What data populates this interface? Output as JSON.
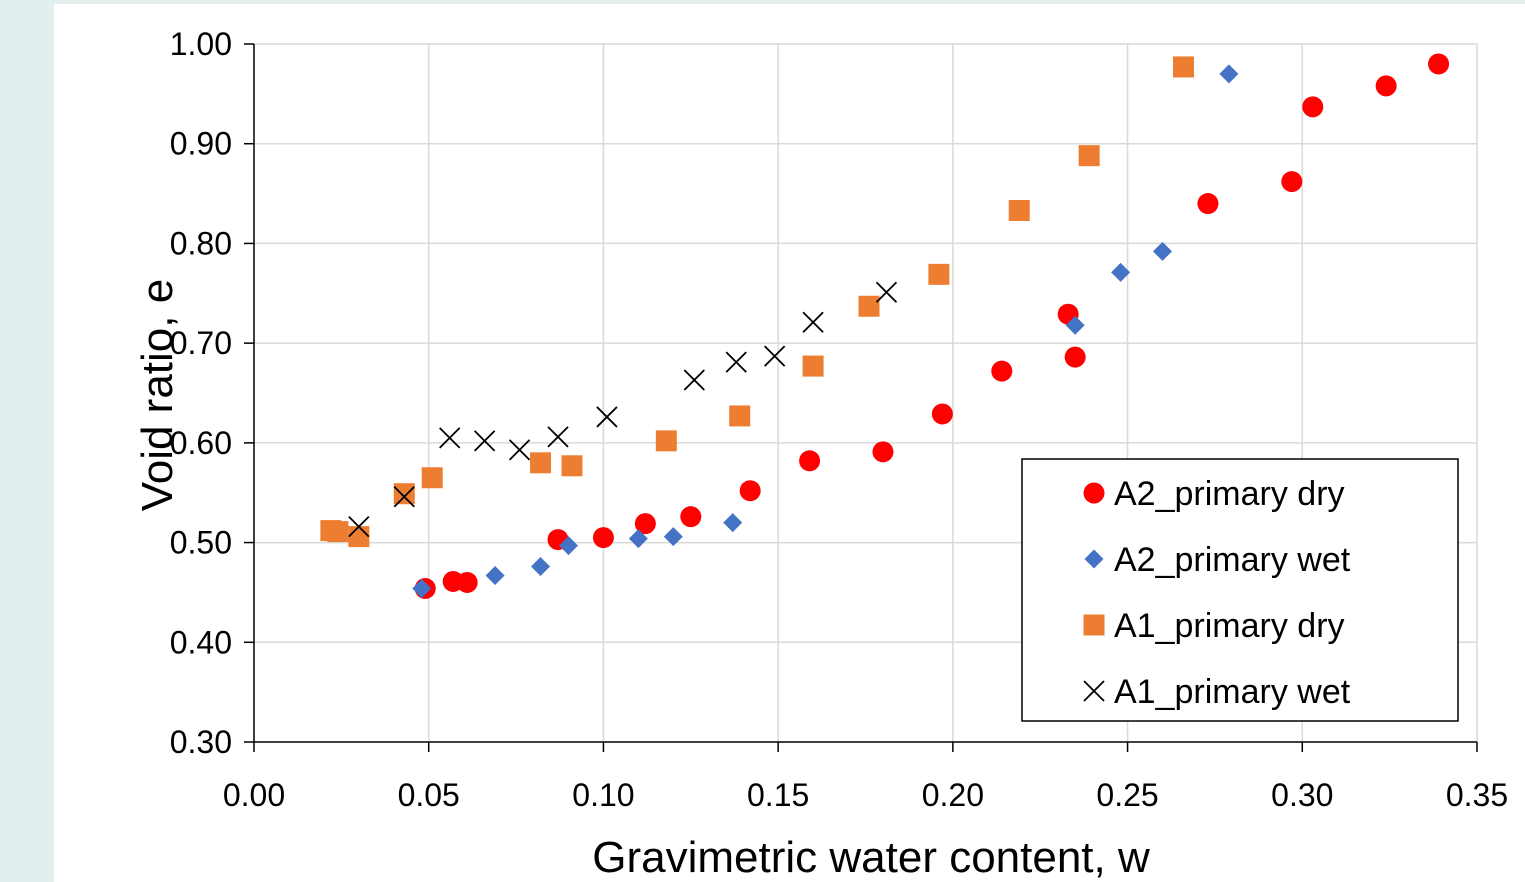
{
  "chart_data": {
    "type": "scatter",
    "xlabel": "Gravimetric water content, w",
    "ylabel": "Void ratio, e",
    "xlim": [
      0,
      0.35
    ],
    "ylim": [
      0.3,
      1.0
    ],
    "xticks": [
      "0.00",
      "0.05",
      "0.10",
      "0.15",
      "0.20",
      "0.25",
      "0.30",
      "0.35"
    ],
    "yticks": [
      "0.30",
      "0.40",
      "0.50",
      "0.60",
      "0.70",
      "0.80",
      "0.90",
      "1.00"
    ],
    "grid": true,
    "legend_position": "bottom-right",
    "series": [
      {
        "name": "A2_primary dry",
        "marker": "circle",
        "color": "#ff0000",
        "points": [
          [
            0.049,
            0.454
          ],
          [
            0.057,
            0.461
          ],
          [
            0.061,
            0.46
          ],
          [
            0.087,
            0.503
          ],
          [
            0.1,
            0.505
          ],
          [
            0.112,
            0.519
          ],
          [
            0.125,
            0.526
          ],
          [
            0.142,
            0.552
          ],
          [
            0.159,
            0.582
          ],
          [
            0.18,
            0.591
          ],
          [
            0.197,
            0.629
          ],
          [
            0.214,
            0.672
          ],
          [
            0.233,
            0.729
          ],
          [
            0.235,
            0.686
          ],
          [
            0.273,
            0.84
          ],
          [
            0.297,
            0.862
          ],
          [
            0.303,
            0.937
          ],
          [
            0.324,
            0.958
          ],
          [
            0.339,
            0.98
          ]
        ]
      },
      {
        "name": "A2_primary wet",
        "marker": "diamond",
        "color": "#4472c4",
        "points": [
          [
            0.048,
            0.454
          ],
          [
            0.069,
            0.467
          ],
          [
            0.082,
            0.476
          ],
          [
            0.09,
            0.497
          ],
          [
            0.11,
            0.504
          ],
          [
            0.12,
            0.506
          ],
          [
            0.137,
            0.52
          ],
          [
            0.235,
            0.718
          ],
          [
            0.248,
            0.771
          ],
          [
            0.26,
            0.792
          ],
          [
            0.279,
            0.97
          ]
        ]
      },
      {
        "name": "A1_primary dry",
        "marker": "square",
        "color": "#ed7d31",
        "points": [
          [
            0.022,
            0.512
          ],
          [
            0.024,
            0.511
          ],
          [
            0.03,
            0.506
          ],
          [
            0.043,
            0.549
          ],
          [
            0.051,
            0.565
          ],
          [
            0.082,
            0.58
          ],
          [
            0.091,
            0.577
          ],
          [
            0.118,
            0.602
          ],
          [
            0.139,
            0.627
          ],
          [
            0.16,
            0.677
          ],
          [
            0.176,
            0.737
          ],
          [
            0.196,
            0.769
          ],
          [
            0.219,
            0.833
          ],
          [
            0.239,
            0.888
          ],
          [
            0.266,
            0.977
          ]
        ]
      },
      {
        "name": "A1_primary wet",
        "marker": "x",
        "color": "#000000",
        "points": [
          [
            0.03,
            0.516
          ],
          [
            0.043,
            0.546
          ],
          [
            0.056,
            0.605
          ],
          [
            0.066,
            0.602
          ],
          [
            0.076,
            0.593
          ],
          [
            0.087,
            0.606
          ],
          [
            0.101,
            0.626
          ],
          [
            0.126,
            0.663
          ],
          [
            0.138,
            0.681
          ],
          [
            0.149,
            0.687
          ],
          [
            0.16,
            0.721
          ],
          [
            0.181,
            0.751
          ]
        ]
      }
    ]
  }
}
